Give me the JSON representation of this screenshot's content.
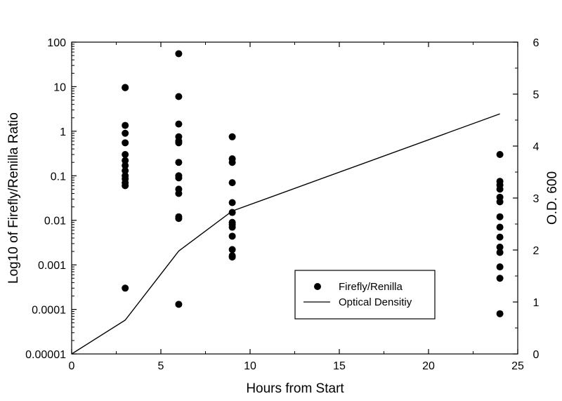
{
  "chart_data": {
    "type": "scatter",
    "xlabel": "Hours from Start",
    "ylabel": "Log10 of Firefly/Renilla Ratio",
    "y2label": "O.D. 600",
    "xlim": [
      0,
      25
    ],
    "ylim": [
      1e-05,
      100
    ],
    "yscale": "log",
    "y2lim": [
      0,
      6
    ],
    "grid": false,
    "legend_position": "lower-right",
    "x_ticks": [
      "0",
      "5",
      "10",
      "15",
      "20",
      "25"
    ],
    "y_ticks": [
      "0.00001",
      "0.0001",
      "0.001",
      "0.01",
      "0.1",
      "1",
      "10",
      "100"
    ],
    "y2_ticks": [
      "0",
      "1",
      "2",
      "3",
      "4",
      "5",
      "6"
    ],
    "series": [
      {
        "name": "Firefly/Renilla",
        "kind": "scatter",
        "axis": "left",
        "color": "#000000",
        "x": [
          3,
          3,
          3,
          3,
          3,
          3,
          3,
          3,
          3,
          3,
          3,
          3,
          3,
          3,
          6,
          6,
          6,
          6,
          6,
          6,
          6,
          6,
          6,
          6,
          6,
          6,
          6,
          6,
          9,
          9,
          9,
          9,
          9,
          9,
          9,
          9,
          9,
          9,
          9,
          9,
          9,
          24,
          24,
          24,
          24,
          24,
          24,
          24,
          24,
          24,
          24,
          24,
          24,
          24,
          24
        ],
        "y": [
          9.5,
          1.35,
          0.9,
          0.55,
          0.3,
          0.22,
          0.17,
          0.13,
          0.1,
          0.085,
          0.07,
          0.06,
          0.0003,
          9.6,
          55,
          6,
          1.45,
          0.75,
          0.6,
          0.55,
          0.2,
          0.1,
          0.09,
          0.05,
          0.04,
          0.012,
          0.011,
          0.00013,
          0.75,
          0.24,
          0.2,
          0.07,
          0.025,
          0.015,
          0.009,
          0.008,
          0.007,
          0.0044,
          0.0022,
          0.0015,
          0.0016,
          0.3,
          0.075,
          0.062,
          0.05,
          0.033,
          0.026,
          0.012,
          0.007,
          0.0025,
          0.0019,
          0.0009,
          0.0005,
          8e-05,
          0.0042
        ]
      },
      {
        "name": "Optical Densitiy",
        "kind": "line",
        "axis": "right",
        "color": "#000000",
        "x": [
          0,
          3,
          6,
          9,
          24
        ],
        "y": [
          0,
          0.65,
          1.98,
          2.75,
          4.62
        ]
      }
    ]
  }
}
